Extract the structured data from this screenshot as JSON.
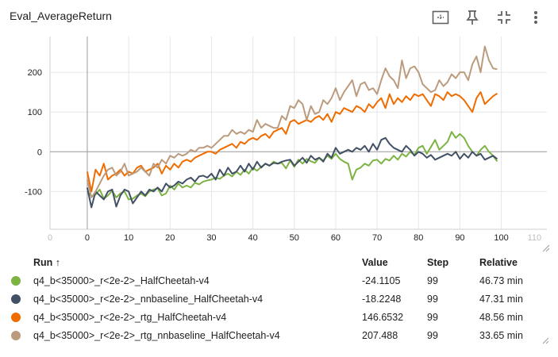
{
  "card": {
    "title": "Eval_AverageReturn",
    "toolbar": [
      {
        "name": "fit-to-data-icon"
      },
      {
        "name": "pin-icon"
      },
      {
        "name": "collapse-icon"
      },
      {
        "name": "more-vert-icon"
      }
    ]
  },
  "chart_data": {
    "type": "line",
    "xlabel": "",
    "ylabel": "",
    "xlim": [
      -9,
      111
    ],
    "ylim": [
      -195,
      290
    ],
    "x_ticks": [
      0,
      10,
      20,
      30,
      40,
      50,
      60,
      70,
      80,
      90,
      100
    ],
    "x_tick_labels": [
      "0",
      "10",
      "20",
      "30",
      "40",
      "50",
      "60",
      "70",
      "80",
      "90",
      "100"
    ],
    "x_ghost_ticks": [
      {
        "value": -9,
        "label": "0"
      },
      {
        "value": 108,
        "label": "110"
      }
    ],
    "y_ticks": [
      -100,
      0,
      100,
      200
    ],
    "y_tick_labels": [
      "-100",
      "0",
      "100",
      "200"
    ],
    "grid": true,
    "x": [
      0,
      1,
      2,
      3,
      4,
      5,
      6,
      7,
      8,
      9,
      10,
      11,
      12,
      13,
      14,
      15,
      16,
      17,
      18,
      19,
      20,
      21,
      22,
      23,
      24,
      25,
      26,
      27,
      28,
      29,
      30,
      31,
      32,
      33,
      34,
      35,
      36,
      37,
      38,
      39,
      40,
      41,
      42,
      43,
      44,
      45,
      46,
      47,
      48,
      49,
      50,
      51,
      52,
      53,
      54,
      55,
      56,
      57,
      58,
      59,
      60,
      61,
      62,
      63,
      64,
      65,
      66,
      67,
      68,
      69,
      70,
      71,
      72,
      73,
      74,
      75,
      76,
      77,
      78,
      79,
      80,
      81,
      82,
      83,
      84,
      85,
      86,
      87,
      88,
      89,
      90,
      91,
      92,
      93,
      94,
      95,
      96,
      97,
      98,
      99
    ],
    "series": [
      {
        "name": "q4_b<35000>_r<2e-2>_HalfCheetah-v4",
        "color": "#7cb342",
        "values": [
          -100,
          -112,
          -108,
          -95,
          -118,
          -110,
          -98,
          -115,
          -105,
          -100,
          -120,
          -118,
          -110,
          -105,
          -112,
          -100,
          -95,
          -92,
          -110,
          -105,
          -85,
          -95,
          -80,
          -90,
          -85,
          -90,
          -78,
          -82,
          -75,
          -72,
          -70,
          -65,
          -68,
          -60,
          -55,
          -62,
          -50,
          -58,
          -45,
          -55,
          -40,
          -48,
          -38,
          -30,
          -35,
          -25,
          -30,
          -28,
          -42,
          -22,
          -38,
          -20,
          -30,
          -18,
          -24,
          -28,
          -15,
          -22,
          -10,
          -18,
          -5,
          -18,
          -25,
          -30,
          -70,
          -45,
          -40,
          -30,
          -35,
          -22,
          -20,
          -30,
          -18,
          -22,
          -10,
          -20,
          -5,
          -12,
          0,
          -8,
          10,
          15,
          -5,
          12,
          30,
          5,
          15,
          25,
          50,
          35,
          45,
          35,
          15,
          0,
          -10,
          5,
          15,
          0,
          -10,
          -24.1
        ]
      },
      {
        "name": "q4_b<35000>_r<2e-2>_nnbaseline_HalfCheetah-v4",
        "color": "#425066",
        "values": [
          -90,
          -140,
          -100,
          -110,
          -120,
          -100,
          -95,
          -138,
          -110,
          -95,
          -100,
          -130,
          -115,
          -100,
          -110,
          -95,
          -100,
          -90,
          -100,
          -80,
          -90,
          -85,
          -75,
          -80,
          -70,
          -65,
          -75,
          -62,
          -60,
          -65,
          -55,
          -70,
          -45,
          -60,
          -40,
          -55,
          -50,
          -35,
          -50,
          -30,
          -45,
          -25,
          -40,
          -30,
          -35,
          -28,
          -30,
          -25,
          -22,
          -20,
          -35,
          -25,
          -15,
          -28,
          -10,
          -20,
          -15,
          -25,
          -5,
          -15,
          10,
          -5,
          0,
          5,
          0,
          10,
          5,
          15,
          0,
          20,
          5,
          30,
          35,
          20,
          10,
          5,
          0,
          15,
          5,
          -10,
          0,
          -5,
          -15,
          -8,
          -20,
          -15,
          -10,
          -5,
          -10,
          0,
          -18,
          -5,
          -15,
          0,
          -10,
          -5,
          -20,
          -15,
          -10,
          -18.2
        ]
      },
      {
        "name": "q4_b<35000>_r<2e-2>_rtg_HalfCheetah-v4",
        "color": "#ef6c00",
        "values": [
          -50,
          -100,
          -45,
          -60,
          -30,
          -70,
          -60,
          -55,
          -45,
          -60,
          -50,
          -55,
          -40,
          -35,
          -50,
          -45,
          -40,
          -30,
          -55,
          -35,
          -45,
          -30,
          -40,
          -25,
          -20,
          -25,
          -15,
          -10,
          -5,
          0,
          0,
          -5,
          5,
          10,
          15,
          20,
          10,
          25,
          20,
          30,
          35,
          30,
          40,
          45,
          35,
          50,
          55,
          60,
          45,
          75,
          80,
          70,
          75,
          80,
          75,
          85,
          90,
          80,
          95,
          75,
          100,
          95,
          110,
          105,
          100,
          115,
          110,
          100,
          120,
          110,
          125,
          135,
          110,
          145,
          120,
          135,
          125,
          140,
          130,
          145,
          140,
          145,
          130,
          115,
          145,
          140,
          130,
          150,
          140,
          145,
          140,
          130,
          115,
          100,
          135,
          150,
          120,
          130,
          140,
          146.7
        ]
      },
      {
        "name": "q4_b<35000>_r<2e-2>_rtg_nnbaseline_HalfCheetah-v4",
        "color": "#bb9b7e",
        "values": [
          -70,
          -115,
          -100,
          -80,
          -60,
          -45,
          -40,
          -60,
          -50,
          -30,
          -60,
          -55,
          -50,
          -40,
          -50,
          -60,
          -30,
          -40,
          -20,
          -30,
          -10,
          -15,
          -5,
          -10,
          -5,
          5,
          0,
          10,
          10,
          15,
          10,
          20,
          30,
          40,
          40,
          55,
          45,
          50,
          45,
          55,
          50,
          80,
          60,
          70,
          65,
          60,
          60,
          90,
          80,
          115,
          110,
          130,
          120,
          80,
          115,
          95,
          100,
          130,
          120,
          135,
          160,
          130,
          150,
          165,
          180,
          140,
          170,
          175,
          155,
          160,
          145,
          180,
          210,
          190,
          180,
          160,
          230,
          185,
          210,
          215,
          200,
          170,
          160,
          150,
          155,
          180,
          165,
          175,
          195,
          185,
          200,
          200,
          180,
          220,
          240,
          200,
          265,
          230,
          210,
          207.5
        ]
      }
    ]
  },
  "legend_table": {
    "headers": {
      "run": "Run ↑",
      "value": "Value",
      "step": "Step",
      "relative": "Relative"
    },
    "rows": [
      {
        "run": "q4_b<35000>_r<2e-2>_HalfCheetah-v4",
        "value": "-24.1105",
        "step": "99",
        "relative": "46.73 min",
        "color": "#7cb342"
      },
      {
        "run": "q4_b<35000>_r<2e-2>_nnbaseline_HalfCheetah-v4",
        "value": "-18.2248",
        "step": "99",
        "relative": "47.31 min",
        "color": "#425066"
      },
      {
        "run": "q4_b<35000>_r<2e-2>_rtg_HalfCheetah-v4",
        "value": "146.6532",
        "step": "99",
        "relative": "48.56 min",
        "color": "#ef6c00"
      },
      {
        "run": "q4_b<35000>_r<2e-2>_rtg_nnbaseline_HalfCheetah-v4",
        "value": "207.488",
        "step": "99",
        "relative": "33.65 min",
        "color": "#bb9b7e"
      }
    ]
  }
}
